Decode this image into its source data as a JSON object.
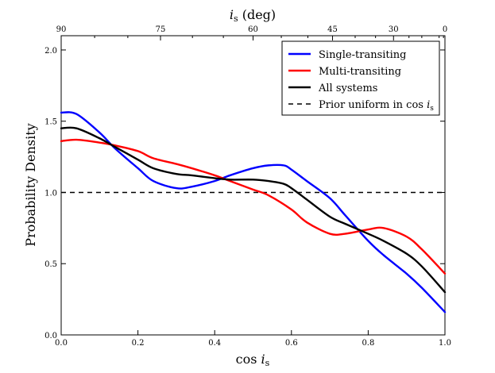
{
  "chart_data": {
    "type": "line",
    "title": "",
    "xlabel": "cos i_s",
    "xlabel_main": "cos ",
    "xlabel_var": "i",
    "xlabel_sub": "s",
    "ylabel": "Probability Density",
    "top_axis_label": "i_s (deg)",
    "top_axis_var": "i",
    "top_axis_sub": "s",
    "top_axis_unit": " (deg)",
    "xlim": [
      0.0,
      1.0
    ],
    "ylim": [
      0.0,
      2.1
    ],
    "xticks": [
      {
        "value": 0.0,
        "label": "0.0"
      },
      {
        "value": 0.2,
        "label": "0.2"
      },
      {
        "value": 0.4,
        "label": "0.4"
      },
      {
        "value": 0.6,
        "label": "0.6"
      },
      {
        "value": 0.8,
        "label": "0.8"
      },
      {
        "value": 1.0,
        "label": "1.0"
      }
    ],
    "yticks": [
      {
        "value": 0.0,
        "label": "0.0"
      },
      {
        "value": 0.5,
        "label": "0.5"
      },
      {
        "value": 1.0,
        "label": "1.0"
      },
      {
        "value": 1.5,
        "label": "1.5"
      },
      {
        "value": 2.0,
        "label": "2.0"
      }
    ],
    "top_ticks": [
      {
        "value": 0.0,
        "label": "90"
      },
      {
        "value": 0.2588,
        "label": "75"
      },
      {
        "value": 0.5,
        "label": "60"
      },
      {
        "value": 0.7071,
        "label": "45"
      },
      {
        "value": 0.866,
        "label": "30"
      },
      {
        "value": 1.0,
        "label": "0"
      }
    ],
    "legend_position": "top-right",
    "series": [
      {
        "name": "Single-transiting",
        "color": "#0000ff",
        "style": "solid",
        "x": [
          0.0,
          0.04,
          0.1,
          0.14,
          0.2,
          0.24,
          0.3,
          0.34,
          0.4,
          0.44,
          0.5,
          0.54,
          0.58,
          0.6,
          0.64,
          0.7,
          0.74,
          0.8,
          0.84,
          0.9,
          0.94,
          1.0
        ],
        "y": [
          1.56,
          1.55,
          1.42,
          1.31,
          1.17,
          1.08,
          1.03,
          1.04,
          1.08,
          1.12,
          1.17,
          1.19,
          1.19,
          1.16,
          1.08,
          0.96,
          0.84,
          0.66,
          0.56,
          0.43,
          0.33,
          0.16
        ]
      },
      {
        "name": "Multi-transiting",
        "color": "#ff0000",
        "style": "solid",
        "x": [
          0.0,
          0.04,
          0.1,
          0.14,
          0.2,
          0.24,
          0.3,
          0.34,
          0.4,
          0.44,
          0.5,
          0.54,
          0.6,
          0.64,
          0.7,
          0.74,
          0.8,
          0.84,
          0.9,
          0.94,
          1.0
        ],
        "y": [
          1.36,
          1.37,
          1.35,
          1.33,
          1.29,
          1.24,
          1.2,
          1.17,
          1.12,
          1.08,
          1.02,
          0.98,
          0.88,
          0.79,
          0.71,
          0.71,
          0.74,
          0.75,
          0.69,
          0.6,
          0.43
        ]
      },
      {
        "name": "All systems",
        "color": "#000000",
        "style": "solid",
        "x": [
          0.0,
          0.04,
          0.1,
          0.14,
          0.2,
          0.24,
          0.3,
          0.34,
          0.4,
          0.44,
          0.5,
          0.54,
          0.58,
          0.6,
          0.64,
          0.7,
          0.74,
          0.8,
          0.84,
          0.9,
          0.94,
          1.0
        ],
        "y": [
          1.45,
          1.45,
          1.38,
          1.32,
          1.23,
          1.17,
          1.13,
          1.12,
          1.1,
          1.09,
          1.09,
          1.08,
          1.06,
          1.03,
          0.95,
          0.83,
          0.78,
          0.71,
          0.66,
          0.57,
          0.48,
          0.3
        ]
      },
      {
        "name": "Prior uniform in cos i_s",
        "legend_text": "Prior uniform in cos ",
        "legend_var": "i",
        "legend_sub": "s",
        "color": "#000000",
        "style": "dashed",
        "x": [
          0.0,
          1.0
        ],
        "y": [
          1.0,
          1.0
        ]
      }
    ]
  }
}
